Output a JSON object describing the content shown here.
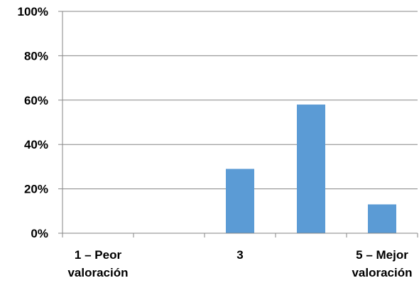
{
  "chart_data": {
    "type": "bar",
    "categories": [
      [
        "1 – Peor",
        "valoración"
      ],
      [],
      [
        "3"
      ],
      [],
      [
        "5 – Mejor",
        "valoración"
      ]
    ],
    "values": [
      0,
      0,
      29,
      58,
      13
    ],
    "unit": "%",
    "ylim": [
      0,
      100
    ],
    "yticks": [
      "0%",
      "20%",
      "40%",
      "60%",
      "80%",
      "100%"
    ],
    "grid": true,
    "legend": "none",
    "title": "",
    "xlabel": "",
    "ylabel": "",
    "colors": {
      "bar": "#5b9bd5",
      "grid": "#868686",
      "axis": "#868686"
    }
  }
}
